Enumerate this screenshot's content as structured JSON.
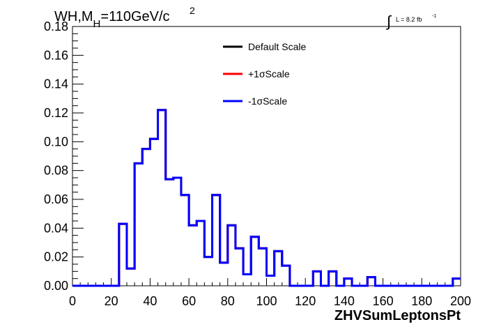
{
  "chart_data": {
    "type": "line",
    "title_main": "WH,M",
    "title_sub": "H",
    "title_rest": "=110GeV/c",
    "title_sup": "2",
    "lumi_label": "L = 8.2 fb",
    "lumi_sup": "-1",
    "lumi_integral": "∫",
    "xlabel": "ZHVSumLeptonsPt",
    "ylabel": "",
    "xlim": [
      0,
      200
    ],
    "ylim": [
      0,
      0.18
    ],
    "x_ticks": [
      "0",
      "20",
      "40",
      "60",
      "80",
      "100",
      "120",
      "140",
      "160",
      "180",
      "200"
    ],
    "x_tick_values": [
      0,
      20,
      40,
      60,
      80,
      100,
      120,
      140,
      160,
      180,
      200
    ],
    "y_ticks": [
      "0.00",
      "0.02",
      "0.04",
      "0.06",
      "0.08",
      "0.10",
      "0.12",
      "0.14",
      "0.16",
      "0.18"
    ],
    "y_tick_values": [
      0,
      0.02,
      0.04,
      0.06,
      0.08,
      0.1,
      0.12,
      0.14,
      0.16,
      0.18
    ],
    "grid": false,
    "legend_position": "top-center",
    "bin_edges": [
      0,
      4,
      8,
      12,
      16,
      20,
      24,
      28,
      32,
      36,
      40,
      44,
      48,
      52,
      56,
      60,
      64,
      68,
      72,
      76,
      80,
      84,
      88,
      92,
      96,
      100,
      104,
      108,
      112,
      116,
      120,
      124,
      128,
      132,
      136,
      140,
      144,
      148,
      152,
      156,
      160,
      164,
      168,
      172,
      176,
      180,
      184,
      188,
      192,
      196,
      200
    ],
    "series": [
      {
        "name": "Default Scale",
        "color": "#000000",
        "values": [
          0,
          0,
          0,
          0,
          0,
          0,
          0.043,
          0.012,
          0.085,
          0.095,
          0.102,
          0.122,
          0.074,
          0.075,
          0.063,
          0.042,
          0.045,
          0.02,
          0.063,
          0.016,
          0.042,
          0.026,
          0.008,
          0.034,
          0.026,
          0.007,
          0.024,
          0.014,
          0.0,
          0.0,
          0.0,
          0.01,
          0.0,
          0.01,
          0.0,
          0.005,
          0.0,
          0.0,
          0.006,
          0.0,
          0.0,
          0.0,
          0.0,
          0.0,
          0.0,
          0.0,
          0.0,
          0.0,
          0.0,
          0.005
        ]
      },
      {
        "name": "+1σScale",
        "color": "#ff0000",
        "values": [
          0,
          0,
          0,
          0,
          0,
          0,
          0.043,
          0.012,
          0.085,
          0.095,
          0.102,
          0.122,
          0.074,
          0.075,
          0.063,
          0.042,
          0.045,
          0.02,
          0.063,
          0.016,
          0.042,
          0.026,
          0.008,
          0.034,
          0.026,
          0.007,
          0.024,
          0.014,
          0.0,
          0.0,
          0.0,
          0.01,
          0.0,
          0.01,
          0.0,
          0.005,
          0.0,
          0.0,
          0.006,
          0.0,
          0.0,
          0.0,
          0.0,
          0.0,
          0.0,
          0.0,
          0.0,
          0.0,
          0.0,
          0.005
        ]
      },
      {
        "name": "-1σScale",
        "color": "#0000ff",
        "values": [
          0,
          0,
          0,
          0,
          0,
          0,
          0.043,
          0.012,
          0.085,
          0.095,
          0.102,
          0.122,
          0.074,
          0.075,
          0.063,
          0.042,
          0.045,
          0.02,
          0.063,
          0.016,
          0.042,
          0.026,
          0.008,
          0.034,
          0.026,
          0.007,
          0.024,
          0.014,
          0.0,
          0.0,
          0.0,
          0.01,
          0.0,
          0.01,
          0.0,
          0.005,
          0.0,
          0.0,
          0.006,
          0.0,
          0.0,
          0.0,
          0.0,
          0.0,
          0.0,
          0.0,
          0.0,
          0.0,
          0.0,
          0.005
        ]
      }
    ]
  }
}
